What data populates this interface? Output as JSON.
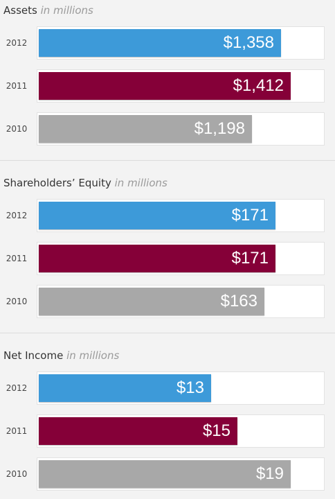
{
  "chart_data": [
    {
      "type": "bar",
      "title": "Assets",
      "unit": "in millions",
      "categories": [
        "2012",
        "2011",
        "2010"
      ],
      "values": [
        1358,
        1412,
        1198
      ],
      "labels": [
        "$1,358",
        "$1,412",
        "$1,198"
      ],
      "xlim": [
        0,
        1600
      ],
      "colors": [
        "#3d9ad9",
        "#850038",
        "#a8a8a8"
      ]
    },
    {
      "type": "bar",
      "title": "Shareholders’ Equity",
      "unit": "in millions",
      "categories": [
        "2012",
        "2011",
        "2010"
      ],
      "values": [
        171,
        171,
        163
      ],
      "labels": [
        "$171",
        "$171",
        "$163"
      ],
      "xlim": [
        0,
        206
      ],
      "colors": [
        "#3d9ad9",
        "#850038",
        "#a8a8a8"
      ]
    },
    {
      "type": "bar",
      "title": "Net Income",
      "unit": "in millions",
      "categories": [
        "2012",
        "2011",
        "2010"
      ],
      "values": [
        13,
        15,
        19
      ],
      "labels": [
        "$13",
        "$15",
        "$19"
      ],
      "xlim": [
        0,
        21.5
      ],
      "colors": [
        "#3d9ad9",
        "#850038",
        "#a8a8a8"
      ]
    }
  ]
}
